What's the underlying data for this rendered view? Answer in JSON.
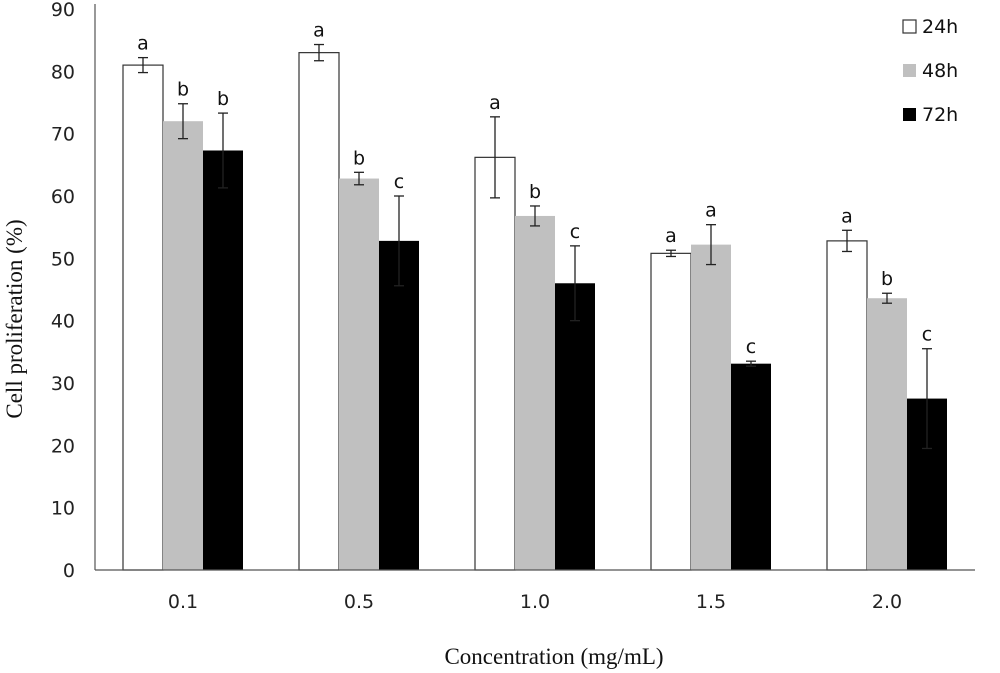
{
  "chart_data": {
    "type": "bar",
    "title": "",
    "xlabel": "Concentration (mg/mL)",
    "ylabel": "Cell proliferation (%)",
    "ylim": [
      0,
      90
    ],
    "yticks": [
      0,
      10,
      20,
      30,
      40,
      50,
      60,
      70,
      80,
      90
    ],
    "grid": false,
    "legend_position": "top-right",
    "categories": [
      "0.1",
      "0.5",
      "1.0",
      "1.5",
      "2.0"
    ],
    "series": [
      {
        "name": "24h",
        "color": "#ffffff",
        "values": [
          81.0,
          83.0,
          66.2,
          50.8,
          52.8
        ],
        "errors": [
          1.2,
          1.3,
          6.5,
          0.5,
          1.7
        ],
        "labels": [
          "a",
          "a",
          "a",
          "a",
          "a"
        ]
      },
      {
        "name": "48h",
        "color": "#c0c0c0",
        "values": [
          72.0,
          62.8,
          56.8,
          52.2,
          43.6
        ],
        "errors": [
          2.8,
          1.0,
          1.6,
          3.2,
          0.8
        ],
        "labels": [
          "b",
          "b",
          "b",
          "a",
          "b"
        ]
      },
      {
        "name": "72h",
        "color": "#000000",
        "values": [
          67.3,
          52.8,
          46.0,
          33.1,
          27.5
        ],
        "errors": [
          6.0,
          7.2,
          6.0,
          0.4,
          8.0
        ],
        "labels": [
          "b",
          "c",
          "c",
          "c",
          "c"
        ]
      }
    ]
  }
}
